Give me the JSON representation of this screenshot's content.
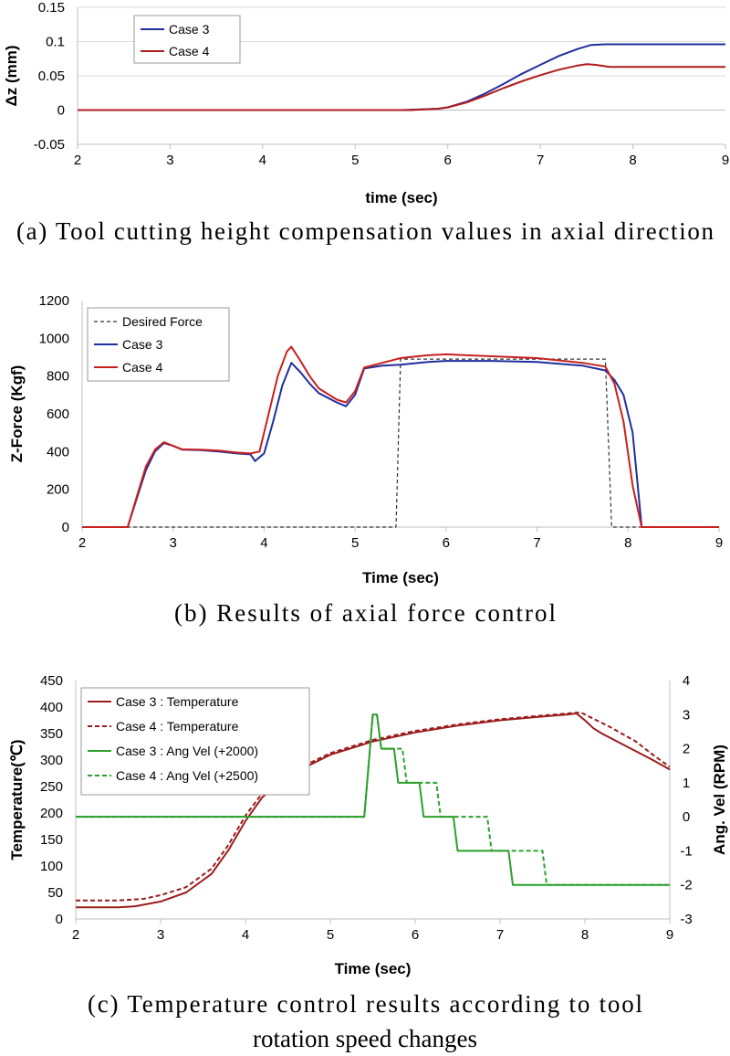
{
  "chart_data": [
    {
      "type": "line",
      "caption": "(a) Tool cutting height compensation values in axial direction",
      "xlabel": "time (sec)",
      "ylabel": "Δz (mm)",
      "xlim": [
        2,
        9
      ],
      "ylim": [
        -0.05,
        0.15
      ],
      "xticks": [
        "2",
        "3",
        "4",
        "5",
        "6",
        "7",
        "8",
        "9"
      ],
      "yticks": [
        "-0.05",
        "0",
        "0.05",
        "0.1",
        "0.15"
      ],
      "grid": "horizontal",
      "legend_position": "top-left",
      "series": [
        {
          "name": "Case 3",
          "color": "#1f2f9e",
          "style": "solid",
          "points": [
            [
              2,
              0
            ],
            [
              5.5,
              0
            ],
            [
              5.9,
              0.002
            ],
            [
              6.0,
              0.004
            ],
            [
              6.2,
              0.012
            ],
            [
              6.4,
              0.024
            ],
            [
              6.6,
              0.038
            ],
            [
              6.8,
              0.053
            ],
            [
              7.0,
              0.066
            ],
            [
              7.2,
              0.079
            ],
            [
              7.4,
              0.089
            ],
            [
              7.55,
              0.095
            ],
            [
              7.7,
              0.096
            ],
            [
              9,
              0.096
            ]
          ]
        },
        {
          "name": "Case 4",
          "color": "#b01c1c",
          "style": "solid",
          "points": [
            [
              2,
              0
            ],
            [
              5.6,
              0
            ],
            [
              5.9,
              0.002
            ],
            [
              6.0,
              0.004
            ],
            [
              6.2,
              0.011
            ],
            [
              6.4,
              0.021
            ],
            [
              6.6,
              0.032
            ],
            [
              6.8,
              0.042
            ],
            [
              7.0,
              0.051
            ],
            [
              7.2,
              0.059
            ],
            [
              7.4,
              0.065
            ],
            [
              7.5,
              0.067
            ],
            [
              7.6,
              0.066
            ],
            [
              7.75,
              0.063
            ],
            [
              9,
              0.063
            ]
          ]
        }
      ]
    },
    {
      "type": "line",
      "caption": "(b) Results of axial force control",
      "xlabel": "Time (sec)",
      "ylabel": "Z-Force (Kgf)",
      "xlim": [
        2,
        9
      ],
      "ylim": [
        0,
        1200
      ],
      "xticks": [
        "2",
        "3",
        "4",
        "5",
        "6",
        "7",
        "8",
        "9"
      ],
      "yticks": [
        "0",
        "200",
        "400",
        "600",
        "800",
        "1000",
        "1200"
      ],
      "grid": "none",
      "legend_position": "top-left",
      "series": [
        {
          "name": "Desired Force",
          "color": "#333333",
          "style": "dashed",
          "points": [
            [
              2,
              0
            ],
            [
              5.45,
              0
            ],
            [
              5.5,
              890
            ],
            [
              7.75,
              890
            ],
            [
              7.82,
              0
            ],
            [
              9,
              0
            ]
          ]
        },
        {
          "name": "Case 3",
          "color": "#1f2f9e",
          "style": "solid",
          "points": [
            [
              2,
              0
            ],
            [
              2.5,
              0
            ],
            [
              2.6,
              150
            ],
            [
              2.7,
              300
            ],
            [
              2.8,
              400
            ],
            [
              2.9,
              445
            ],
            [
              3.0,
              430
            ],
            [
              3.1,
              410
            ],
            [
              3.3,
              408
            ],
            [
              3.5,
              400
            ],
            [
              3.7,
              390
            ],
            [
              3.85,
              385
            ],
            [
              3.9,
              350
            ],
            [
              4.0,
              390
            ],
            [
              4.1,
              560
            ],
            [
              4.2,
              750
            ],
            [
              4.3,
              870
            ],
            [
              4.4,
              820
            ],
            [
              4.5,
              760
            ],
            [
              4.6,
              710
            ],
            [
              4.8,
              660
            ],
            [
              4.9,
              640
            ],
            [
              5.0,
              700
            ],
            [
              5.1,
              840
            ],
            [
              5.3,
              855
            ],
            [
              5.5,
              860
            ],
            [
              5.8,
              875
            ],
            [
              6.0,
              880
            ],
            [
              6.5,
              880
            ],
            [
              7.0,
              875
            ],
            [
              7.5,
              855
            ],
            [
              7.75,
              830
            ],
            [
              7.85,
              780
            ],
            [
              7.95,
              700
            ],
            [
              8.05,
              500
            ],
            [
              8.1,
              250
            ],
            [
              8.15,
              0
            ],
            [
              9,
              0
            ]
          ]
        },
        {
          "name": "Case 4",
          "color": "#c8201e",
          "style": "solid",
          "points": [
            [
              2,
              0
            ],
            [
              2.5,
              0
            ],
            [
              2.6,
              160
            ],
            [
              2.7,
              320
            ],
            [
              2.8,
              410
            ],
            [
              2.9,
              450
            ],
            [
              3.0,
              430
            ],
            [
              3.1,
              412
            ],
            [
              3.3,
              410
            ],
            [
              3.5,
              405
            ],
            [
              3.7,
              395
            ],
            [
              3.85,
              390
            ],
            [
              3.95,
              400
            ],
            [
              4.05,
              600
            ],
            [
              4.15,
              800
            ],
            [
              4.25,
              930
            ],
            [
              4.3,
              955
            ],
            [
              4.4,
              880
            ],
            [
              4.5,
              800
            ],
            [
              4.6,
              735
            ],
            [
              4.8,
              675
            ],
            [
              4.9,
              660
            ],
            [
              5.0,
              720
            ],
            [
              5.1,
              845
            ],
            [
              5.3,
              870
            ],
            [
              5.5,
              895
            ],
            [
              5.8,
              910
            ],
            [
              6.0,
              915
            ],
            [
              6.5,
              905
            ],
            [
              7.0,
              895
            ],
            [
              7.5,
              870
            ],
            [
              7.75,
              850
            ],
            [
              7.85,
              760
            ],
            [
              7.95,
              560
            ],
            [
              8.05,
              220
            ],
            [
              8.15,
              0
            ],
            [
              9,
              0
            ]
          ]
        }
      ]
    },
    {
      "type": "line",
      "caption_lines": [
        "(c) Temperature control results according to tool",
        "rotation speed changes"
      ],
      "xlabel": "Time (sec)",
      "ylabel": "Temperature(℃)",
      "y2label": "Ang. Vel (RPM)",
      "xlim": [
        2,
        9
      ],
      "ylim": [
        0,
        450
      ],
      "y2lim": [
        -3,
        4
      ],
      "xticks": [
        "2",
        "3",
        "4",
        "5",
        "6",
        "7",
        "8",
        "9"
      ],
      "yticks": [
        "0",
        "50",
        "100",
        "150",
        "200",
        "250",
        "300",
        "350",
        "400",
        "450"
      ],
      "y2ticks": [
        "-3",
        "-2",
        "-1",
        "0",
        "1",
        "2",
        "3",
        "4"
      ],
      "grid": "none",
      "legend_position": "top-left",
      "series": [
        {
          "name": "Case 3 : Temperature",
          "color": "#9b1c1c",
          "style": "solid",
          "axis": "left",
          "points": [
            [
              2,
              22
            ],
            [
              2.5,
              22
            ],
            [
              2.7,
              24
            ],
            [
              3.0,
              33
            ],
            [
              3.3,
              50
            ],
            [
              3.6,
              85
            ],
            [
              3.8,
              130
            ],
            [
              4.0,
              185
            ],
            [
              4.2,
              230
            ],
            [
              4.5,
              270
            ],
            [
              5.0,
              310
            ],
            [
              5.5,
              335
            ],
            [
              6.0,
              352
            ],
            [
              6.5,
              365
            ],
            [
              7.0,
              375
            ],
            [
              7.5,
              382
            ],
            [
              7.8,
              386
            ],
            [
              7.9,
              388
            ],
            [
              8.0,
              375
            ],
            [
              8.1,
              360
            ],
            [
              8.2,
              350
            ],
            [
              8.5,
              325
            ],
            [
              8.8,
              300
            ],
            [
              9,
              282
            ]
          ]
        },
        {
          "name": "Case 4 : Temperature",
          "color": "#9b1c1c",
          "style": "dashed",
          "axis": "left",
          "points": [
            [
              2,
              35
            ],
            [
              2.5,
              35
            ],
            [
              2.8,
              38
            ],
            [
              3.0,
              45
            ],
            [
              3.3,
              60
            ],
            [
              3.6,
              95
            ],
            [
              3.8,
              140
            ],
            [
              4.0,
              195
            ],
            [
              4.2,
              238
            ],
            [
              4.5,
              275
            ],
            [
              5.0,
              313
            ],
            [
              5.5,
              338
            ],
            [
              6.0,
              355
            ],
            [
              6.5,
              367
            ],
            [
              7.0,
              377
            ],
            [
              7.5,
              384
            ],
            [
              7.8,
              388
            ],
            [
              7.95,
              390
            ],
            [
              8.1,
              378
            ],
            [
              8.3,
              362
            ],
            [
              8.6,
              335
            ],
            [
              8.8,
              310
            ],
            [
              9,
              287
            ]
          ]
        },
        {
          "name": "Case 3 : Ang Vel (+2000)",
          "color": "#2ca02c",
          "style": "solid",
          "axis": "right",
          "points": [
            [
              2,
              0
            ],
            [
              5.4,
              0
            ],
            [
              5.45,
              1.5
            ],
            [
              5.5,
              3.0
            ],
            [
              5.55,
              3.0
            ],
            [
              5.6,
              2.0
            ],
            [
              5.75,
              2.0
            ],
            [
              5.8,
              1.0
            ],
            [
              6.05,
              1.0
            ],
            [
              6.1,
              0
            ],
            [
              6.45,
              0
            ],
            [
              6.5,
              -1
            ],
            [
              7.1,
              -1
            ],
            [
              7.15,
              -2
            ],
            [
              9,
              -2
            ]
          ]
        },
        {
          "name": "Case 4 : Ang Vel (+2500)",
          "color": "#2ca02c",
          "style": "dashed",
          "axis": "right",
          "points": [
            [
              2,
              0
            ],
            [
              5.4,
              0
            ],
            [
              5.45,
              1.5
            ],
            [
              5.5,
              3.0
            ],
            [
              5.55,
              3.0
            ],
            [
              5.6,
              2.0
            ],
            [
              5.85,
              2.0
            ],
            [
              5.9,
              1.0
            ],
            [
              6.25,
              1.0
            ],
            [
              6.3,
              0
            ],
            [
              6.85,
              0
            ],
            [
              6.9,
              -1
            ],
            [
              7.5,
              -1
            ],
            [
              7.55,
              -2
            ],
            [
              9,
              -2
            ]
          ]
        }
      ]
    }
  ]
}
